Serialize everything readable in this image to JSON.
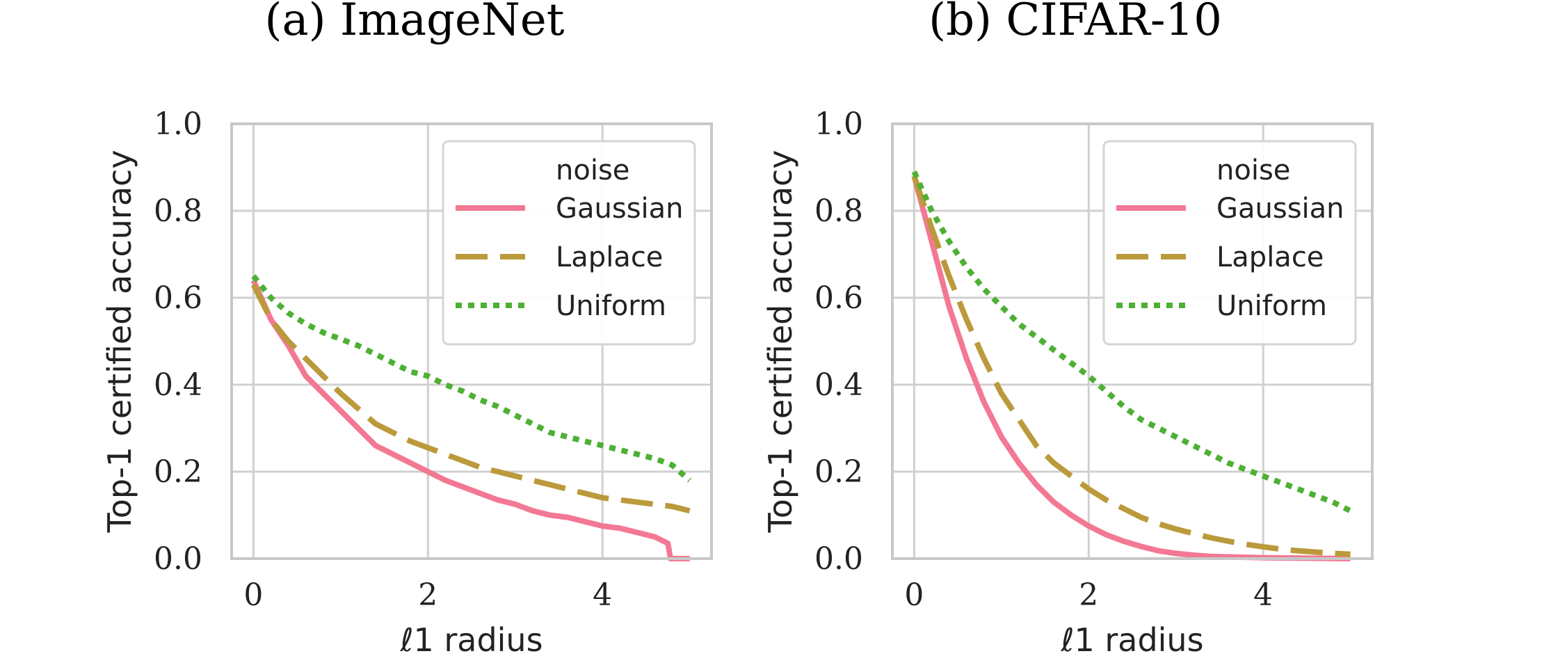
{
  "chart_data": [
    {
      "type": "line",
      "title": "(a) ImageNet",
      "xlabel": "ℓ1 radius",
      "ylabel": "Top-1 certified accuracy",
      "xlim": [
        -0.25,
        5.25
      ],
      "ylim": [
        0.0,
        1.0
      ],
      "xticks": [
        "0",
        "2",
        "4"
      ],
      "yticks": [
        "0.0",
        "0.2",
        "0.4",
        "0.6",
        "0.8",
        "1.0"
      ],
      "grid": true,
      "legend": {
        "title": "noise",
        "position": "top-right"
      },
      "series": [
        {
          "name": "Gaussian",
          "color": "#f37893",
          "style": "solid",
          "x": [
            0,
            0.2,
            0.4,
            0.6,
            0.8,
            1.0,
            1.2,
            1.4,
            1.6,
            1.8,
            2.0,
            2.2,
            2.4,
            2.6,
            2.8,
            3.0,
            3.2,
            3.4,
            3.6,
            3.8,
            4.0,
            4.2,
            4.4,
            4.6,
            4.75,
            4.78,
            5.0
          ],
          "y": [
            0.64,
            0.55,
            0.49,
            0.42,
            0.38,
            0.34,
            0.3,
            0.26,
            0.24,
            0.22,
            0.2,
            0.18,
            0.165,
            0.15,
            0.135,
            0.125,
            0.11,
            0.1,
            0.095,
            0.085,
            0.075,
            0.07,
            0.06,
            0.05,
            0.035,
            0.0,
            0.0
          ]
        },
        {
          "name": "Laplace",
          "color": "#bb9a3c",
          "style": "dashed",
          "x": [
            0,
            0.2,
            0.4,
            0.6,
            0.8,
            1.0,
            1.2,
            1.4,
            1.6,
            1.8,
            2.0,
            2.2,
            2.4,
            2.6,
            2.8,
            3.0,
            3.2,
            3.4,
            3.6,
            3.8,
            4.0,
            4.2,
            4.4,
            4.6,
            4.8,
            5.0
          ],
          "y": [
            0.63,
            0.55,
            0.5,
            0.46,
            0.42,
            0.38,
            0.345,
            0.31,
            0.29,
            0.27,
            0.255,
            0.24,
            0.225,
            0.21,
            0.2,
            0.19,
            0.18,
            0.17,
            0.16,
            0.15,
            0.14,
            0.135,
            0.13,
            0.125,
            0.12,
            0.11
          ]
        },
        {
          "name": "Uniform",
          "color": "#4db035",
          "style": "dotted",
          "x": [
            0,
            0.2,
            0.4,
            0.6,
            0.8,
            1.0,
            1.2,
            1.4,
            1.6,
            1.8,
            2.0,
            2.2,
            2.4,
            2.6,
            2.8,
            3.0,
            3.2,
            3.4,
            3.6,
            3.8,
            4.0,
            4.2,
            4.4,
            4.6,
            4.8,
            5.0
          ],
          "y": [
            0.65,
            0.6,
            0.565,
            0.54,
            0.52,
            0.505,
            0.49,
            0.47,
            0.45,
            0.43,
            0.42,
            0.4,
            0.385,
            0.365,
            0.35,
            0.33,
            0.31,
            0.29,
            0.28,
            0.27,
            0.26,
            0.25,
            0.24,
            0.23,
            0.215,
            0.18
          ]
        }
      ]
    },
    {
      "type": "line",
      "title": "(b) CIFAR-10",
      "xlabel": "ℓ1 radius",
      "ylabel": "Top-1 certified accuracy",
      "xlim": [
        -0.25,
        5.25
      ],
      "ylim": [
        0.0,
        1.0
      ],
      "xticks": [
        "0",
        "2",
        "4"
      ],
      "yticks": [
        "0.0",
        "0.2",
        "0.4",
        "0.6",
        "0.8",
        "1.0"
      ],
      "grid": true,
      "legend": {
        "title": "noise",
        "position": "top-right"
      },
      "series": [
        {
          "name": "Gaussian",
          "color": "#f37893",
          "style": "solid",
          "x": [
            0,
            0.2,
            0.4,
            0.6,
            0.8,
            1.0,
            1.2,
            1.4,
            1.6,
            1.8,
            2.0,
            2.2,
            2.4,
            2.6,
            2.8,
            3.0,
            3.2,
            3.4,
            3.6,
            3.8,
            4.0,
            4.5,
            5.0
          ],
          "y": [
            0.88,
            0.73,
            0.58,
            0.46,
            0.36,
            0.28,
            0.22,
            0.17,
            0.13,
            0.1,
            0.075,
            0.055,
            0.04,
            0.028,
            0.018,
            0.012,
            0.008,
            0.005,
            0.004,
            0.003,
            0.002,
            0.001,
            0.0
          ]
        },
        {
          "name": "Laplace",
          "color": "#bb9a3c",
          "style": "dashed",
          "x": [
            0,
            0.2,
            0.4,
            0.6,
            0.8,
            1.0,
            1.2,
            1.4,
            1.6,
            1.8,
            2.0,
            2.2,
            2.4,
            2.6,
            2.8,
            3.0,
            3.2,
            3.4,
            3.6,
            3.8,
            4.0,
            4.2,
            4.4,
            4.6,
            4.8,
            5.0
          ],
          "y": [
            0.88,
            0.76,
            0.65,
            0.55,
            0.46,
            0.38,
            0.32,
            0.26,
            0.22,
            0.19,
            0.16,
            0.135,
            0.115,
            0.095,
            0.08,
            0.068,
            0.058,
            0.048,
            0.04,
            0.033,
            0.027,
            0.022,
            0.018,
            0.015,
            0.012,
            0.01
          ]
        },
        {
          "name": "Uniform",
          "color": "#4db035",
          "style": "dotted",
          "x": [
            0,
            0.2,
            0.4,
            0.6,
            0.8,
            1.0,
            1.2,
            1.4,
            1.6,
            1.8,
            2.0,
            2.2,
            2.4,
            2.6,
            2.8,
            3.0,
            3.2,
            3.4,
            3.6,
            3.8,
            4.0,
            4.2,
            4.4,
            4.6,
            4.8,
            5.0
          ],
          "y": [
            0.89,
            0.8,
            0.73,
            0.67,
            0.62,
            0.58,
            0.54,
            0.51,
            0.48,
            0.45,
            0.42,
            0.385,
            0.35,
            0.32,
            0.3,
            0.28,
            0.26,
            0.24,
            0.22,
            0.205,
            0.19,
            0.175,
            0.16,
            0.145,
            0.13,
            0.11
          ]
        }
      ]
    }
  ]
}
